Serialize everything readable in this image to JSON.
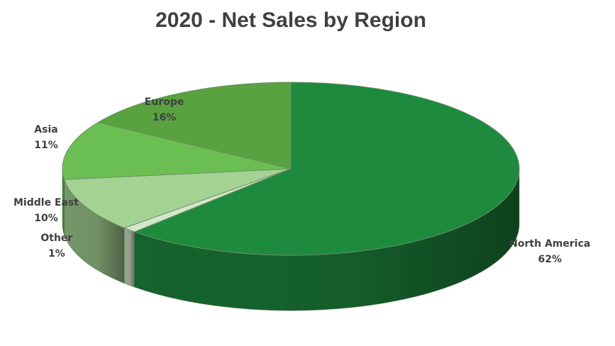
{
  "chart_data": {
    "type": "pie",
    "title": "2020 - Net Sales by Region",
    "slices": [
      {
        "label": "North America",
        "value": 62,
        "value_label": "62%",
        "color": "#1e8a3e"
      },
      {
        "label": "Other",
        "value": 1,
        "value_label": "1%",
        "color": "#d3e8c8"
      },
      {
        "label": "Middle East",
        "value": 10,
        "value_label": "10%",
        "color": "#a4d293"
      },
      {
        "label": "Asia",
        "value": 11,
        "value_label": "11%",
        "color": "#6bbf52"
      },
      {
        "label": "Europe",
        "value": 16,
        "value_label": "16%",
        "color": "#58a23f"
      }
    ],
    "style": "3d",
    "legend": "none"
  }
}
